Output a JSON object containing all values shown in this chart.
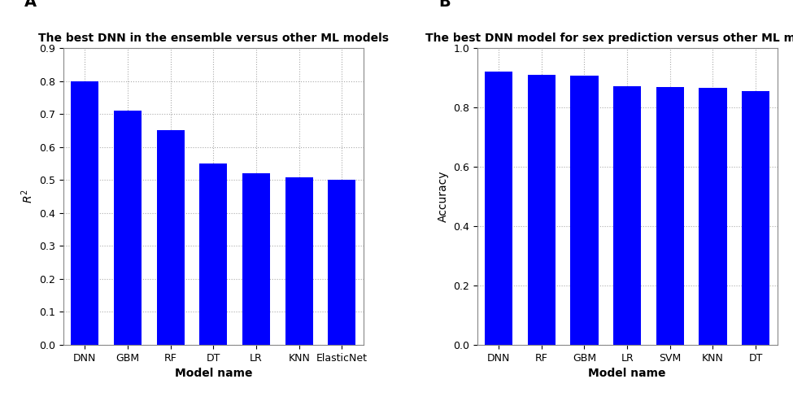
{
  "chart_A": {
    "title": "The best DNN in the ensemble versus other ML models",
    "categories": [
      "DNN",
      "GBM",
      "RF",
      "DT",
      "LR",
      "KNN",
      "ElasticNet"
    ],
    "values": [
      0.8,
      0.71,
      0.65,
      0.55,
      0.52,
      0.508,
      0.5
    ],
    "ylabel": "$R^2$",
    "xlabel": "Model name",
    "ylim": [
      0.0,
      0.9
    ],
    "yticks": [
      0.0,
      0.1,
      0.2,
      0.3,
      0.4,
      0.5,
      0.6,
      0.7,
      0.8,
      0.9
    ],
    "bar_color": "#0000FF",
    "panel_label": "A"
  },
  "chart_B": {
    "title": "The best DNN model for sex prediction versus other ML models",
    "categories": [
      "DNN",
      "RF",
      "GBM",
      "LR",
      "SVM",
      "KNN",
      "DT"
    ],
    "values": [
      0.921,
      0.909,
      0.906,
      0.872,
      0.87,
      0.865,
      0.855
    ],
    "ylabel": "Accuracy",
    "xlabel": "Model name",
    "ylim": [
      0.0,
      1.0
    ],
    "yticks": [
      0.0,
      0.2,
      0.4,
      0.6,
      0.8,
      1.0
    ],
    "bar_color": "#0000FF",
    "panel_label": "B"
  },
  "background_color": "#FFFFFF",
  "grid_color": "#AAAAAA",
  "grid_linestyle": ":",
  "title_fontsize": 10,
  "label_fontsize": 10,
  "tick_fontsize": 9,
  "panel_label_fontsize": 14
}
